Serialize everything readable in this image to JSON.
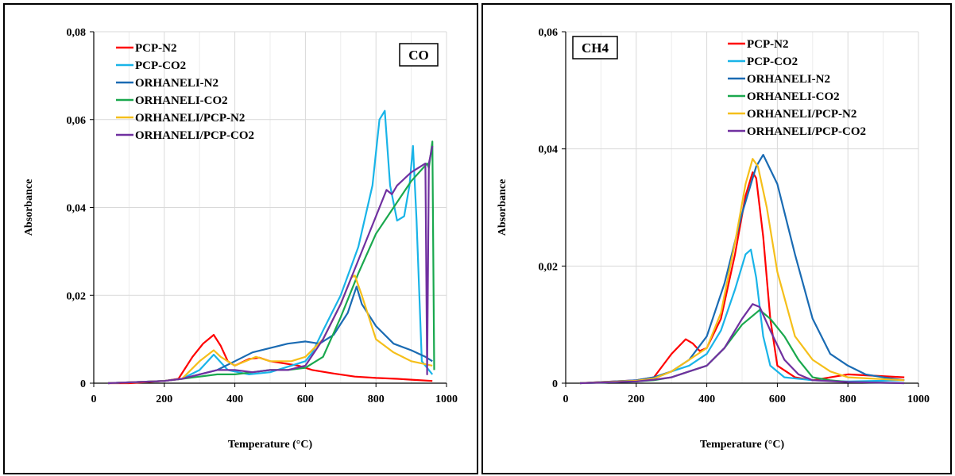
{
  "chart_data": [
    {
      "type": "line",
      "gas_label": "CO",
      "xlabel": "Temperature (°C)",
      "ylabel": "Absorbance",
      "xlim": [
        0,
        1000
      ],
      "ylim": [
        0,
        0.08
      ],
      "x_ticks": [
        0,
        200,
        400,
        600,
        800,
        1000
      ],
      "x_tick_labels": [
        "0",
        "200",
        "400",
        "600",
        "800",
        "1000"
      ],
      "y_ticks": [
        0,
        0.02,
        0.04,
        0.06,
        0.08
      ],
      "y_tick_labels": [
        "0",
        "0,02",
        "0,04",
        "0,06",
        "0,08"
      ],
      "grid": true,
      "legend_position": "top-left",
      "series": [
        {
          "name": "PCP-N2",
          "color": "#ff0000",
          "x": [
            40,
            100,
            200,
            240,
            280,
            310,
            340,
            360,
            380,
            400,
            440,
            470,
            500,
            540,
            580,
            620,
            680,
            740,
            800,
            860,
            900,
            960
          ],
          "y": [
            0,
            0,
            0.0005,
            0.001,
            0.006,
            0.009,
            0.011,
            0.0085,
            0.005,
            0.004,
            0.0055,
            0.0058,
            0.005,
            0.0045,
            0.004,
            0.003,
            0.0022,
            0.0015,
            0.0012,
            0.001,
            0.0008,
            0.0005
          ]
        },
        {
          "name": "PCP-CO2",
          "color": "#19b4e8",
          "x": [
            40,
            200,
            250,
            300,
            340,
            380,
            440,
            500,
            560,
            600,
            620,
            650,
            700,
            750,
            790,
            810,
            825,
            840,
            860,
            880,
            895,
            905,
            915,
            930,
            950,
            960
          ],
          "y": [
            0,
            0.0005,
            0.001,
            0.003,
            0.0065,
            0.003,
            0.002,
            0.0025,
            0.004,
            0.005,
            0.007,
            0.012,
            0.02,
            0.031,
            0.045,
            0.06,
            0.062,
            0.045,
            0.037,
            0.038,
            0.045,
            0.054,
            0.037,
            0.005,
            0.003,
            0.002
          ]
        },
        {
          "name": "ORHANELI-N2",
          "color": "#1a6bb3",
          "x": [
            40,
            200,
            250,
            300,
            350,
            400,
            450,
            500,
            550,
            600,
            640,
            680,
            720,
            745,
            760,
            800,
            850,
            900,
            940,
            960
          ],
          "y": [
            0,
            0.0005,
            0.001,
            0.002,
            0.003,
            0.005,
            0.007,
            0.008,
            0.009,
            0.0095,
            0.009,
            0.011,
            0.016,
            0.022,
            0.018,
            0.013,
            0.009,
            0.0075,
            0.006,
            0.005
          ]
        },
        {
          "name": "ORHANELI-CO2",
          "color": "#1aa84e",
          "x": [
            40,
            200,
            250,
            300,
            350,
            400,
            450,
            500,
            550,
            600,
            650,
            700,
            750,
            800,
            850,
            900,
            945,
            950,
            955,
            960,
            965
          ],
          "y": [
            0,
            0.0005,
            0.001,
            0.0015,
            0.002,
            0.002,
            0.0025,
            0.003,
            0.003,
            0.0035,
            0.006,
            0.015,
            0.025,
            0.034,
            0.04,
            0.046,
            0.05,
            0.049,
            0.052,
            0.055,
            0.003
          ]
        },
        {
          "name": "ORHANELI/PCP-N2",
          "color": "#f5bf1a",
          "x": [
            40,
            200,
            250,
            300,
            340,
            360,
            400,
            460,
            500,
            560,
            600,
            650,
            700,
            730,
            740,
            760,
            800,
            850,
            900,
            960
          ],
          "y": [
            0,
            0.0005,
            0.001,
            0.005,
            0.0075,
            0.006,
            0.004,
            0.006,
            0.005,
            0.005,
            0.006,
            0.01,
            0.018,
            0.024,
            0.0245,
            0.02,
            0.01,
            0.007,
            0.005,
            0.004
          ]
        },
        {
          "name": "ORHANELI/PCP-CO2",
          "color": "#7030a0",
          "x": [
            40,
            200,
            250,
            300,
            350,
            400,
            450,
            500,
            550,
            600,
            650,
            700,
            750,
            800,
            830,
            845,
            860,
            900,
            940,
            945,
            950,
            960
          ],
          "y": [
            0,
            0.0005,
            0.001,
            0.002,
            0.003,
            0.003,
            0.0025,
            0.003,
            0.003,
            0.004,
            0.01,
            0.018,
            0.028,
            0.038,
            0.044,
            0.043,
            0.045,
            0.048,
            0.05,
            0.002,
            0.05,
            0.054
          ]
        }
      ]
    },
    {
      "type": "line",
      "gas_label": "CH4",
      "xlabel": "Temperature (°C)",
      "ylabel": "Absorbance",
      "xlim": [
        0,
        1000
      ],
      "ylim": [
        0,
        0.06
      ],
      "x_ticks": [
        0,
        200,
        400,
        600,
        800,
        1000
      ],
      "x_tick_labels": [
        "0",
        "200",
        "400",
        "600",
        "800",
        "1000"
      ],
      "y_ticks": [
        0,
        0.02,
        0.04,
        0.06
      ],
      "y_tick_labels": [
        "0",
        "0,02",
        "0,04",
        "0,06"
      ],
      "grid": true,
      "legend_position": "top-center",
      "series": [
        {
          "name": "PCP-N2",
          "color": "#ff0000",
          "x": [
            40,
            200,
            250,
            300,
            340,
            360,
            380,
            400,
            440,
            480,
            510,
            530,
            540,
            560,
            580,
            600,
            650,
            700,
            800,
            960
          ],
          "y": [
            0,
            0.0005,
            0.001,
            0.005,
            0.0075,
            0.0068,
            0.0055,
            0.006,
            0.011,
            0.022,
            0.032,
            0.036,
            0.035,
            0.025,
            0.011,
            0.003,
            0.001,
            0.0005,
            0.0015,
            0.001
          ]
        },
        {
          "name": "PCP-CO2",
          "color": "#19b4e8",
          "x": [
            40,
            200,
            250,
            300,
            350,
            400,
            440,
            480,
            510,
            525,
            540,
            560,
            580,
            620,
            700,
            800,
            960
          ],
          "y": [
            0,
            0.0003,
            0.0008,
            0.002,
            0.003,
            0.005,
            0.009,
            0.016,
            0.022,
            0.0228,
            0.018,
            0.008,
            0.003,
            0.001,
            0.0005,
            0.0003,
            0.0005
          ]
        },
        {
          "name": "ORHANELI-N2",
          "color": "#1a6bb3",
          "x": [
            40,
            200,
            250,
            300,
            350,
            400,
            450,
            500,
            540,
            560,
            600,
            650,
            700,
            750,
            800,
            850,
            900,
            960
          ],
          "y": [
            0,
            0.0005,
            0.001,
            0.002,
            0.004,
            0.008,
            0.017,
            0.029,
            0.037,
            0.039,
            0.034,
            0.022,
            0.011,
            0.005,
            0.003,
            0.0015,
            0.001,
            0.0005
          ]
        },
        {
          "name": "ORHANELI-CO2",
          "color": "#1aa84e",
          "x": [
            40,
            200,
            250,
            300,
            350,
            400,
            450,
            500,
            550,
            580,
            620,
            660,
            700,
            750,
            800,
            960
          ],
          "y": [
            0,
            0.0003,
            0.0005,
            0.001,
            0.002,
            0.003,
            0.006,
            0.01,
            0.0125,
            0.011,
            0.008,
            0.004,
            0.001,
            0.0005,
            0.0002,
            0
          ]
        },
        {
          "name": "ORHANELI/PCP-N2",
          "color": "#f5bf1a",
          "x": [
            40,
            200,
            250,
            300,
            350,
            400,
            440,
            480,
            510,
            530,
            545,
            570,
            600,
            650,
            700,
            750,
            800,
            960
          ],
          "y": [
            0,
            0.0004,
            0.0008,
            0.002,
            0.004,
            0.006,
            0.012,
            0.024,
            0.034,
            0.0383,
            0.037,
            0.03,
            0.019,
            0.008,
            0.004,
            0.002,
            0.001,
            0.0005
          ]
        },
        {
          "name": "ORHANELI/PCP-CO2",
          "color": "#7030a0",
          "x": [
            40,
            200,
            250,
            300,
            350,
            400,
            450,
            500,
            530,
            550,
            580,
            620,
            660,
            700,
            800,
            960
          ],
          "y": [
            0,
            0.0003,
            0.0006,
            0.001,
            0.002,
            0.003,
            0.006,
            0.011,
            0.0135,
            0.013,
            0.009,
            0.004,
            0.0015,
            0.0005,
            0.0002,
            0
          ]
        }
      ]
    }
  ]
}
